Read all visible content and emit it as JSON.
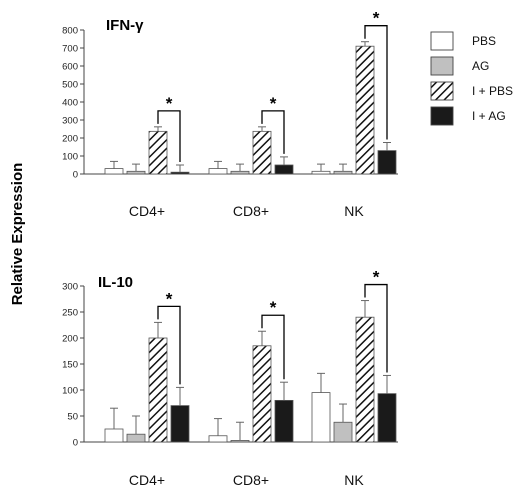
{
  "y_axis_label": "Relative Expression",
  "legend": [
    {
      "label": "PBS",
      "fill": "#ffffff"
    },
    {
      "label": "AG",
      "fill": "#c0c0c0"
    },
    {
      "label": "I + PBS",
      "fill": "hatch"
    },
    {
      "label": "I + AG",
      "fill": "#1a1a1a"
    }
  ],
  "significance_marker": "*",
  "chart_data": [
    {
      "type": "bar",
      "title": "IFN-γ",
      "categories": [
        "CD4+",
        "CD8+",
        "NK"
      ],
      "ylim": [
        0,
        800
      ],
      "yticks": [
        0,
        100,
        200,
        300,
        400,
        500,
        600,
        700,
        800
      ],
      "series": [
        {
          "name": "PBS",
          "values": [
            30,
            30,
            15
          ],
          "errors": [
            40,
            40,
            40
          ]
        },
        {
          "name": "AG",
          "values": [
            15,
            15,
            15
          ],
          "errors": [
            40,
            40,
            40
          ]
        },
        {
          "name": "I + PBS",
          "values": [
            237,
            237,
            710
          ],
          "errors": [
            25,
            25,
            25
          ]
        },
        {
          "name": "I + AG",
          "values": [
            10,
            50,
            130
          ],
          "errors": [
            40,
            45,
            45
          ]
        }
      ],
      "significance": [
        {
          "category": "CD4+",
          "between": [
            "I + PBS",
            "I + AG"
          ],
          "label": "*"
        },
        {
          "category": "CD8+",
          "between": [
            "I + PBS",
            "I + AG"
          ],
          "label": "*"
        },
        {
          "category": "NK",
          "between": [
            "I + PBS",
            "I + AG"
          ],
          "label": "*"
        }
      ]
    },
    {
      "type": "bar",
      "title": "IL-10",
      "categories": [
        "CD4+",
        "CD8+",
        "NK"
      ],
      "ylim": [
        0,
        300
      ],
      "yticks": [
        0,
        50,
        100,
        150,
        200,
        250,
        300
      ],
      "series": [
        {
          "name": "PBS",
          "values": [
            25,
            12,
            95
          ],
          "errors": [
            40,
            33,
            37
          ]
        },
        {
          "name": "AG",
          "values": [
            15,
            3,
            38
          ],
          "errors": [
            35,
            35,
            35
          ]
        },
        {
          "name": "I + PBS",
          "values": [
            200,
            185,
            240
          ],
          "errors": [
            30,
            28,
            32
          ]
        },
        {
          "name": "I + AG",
          "values": [
            70,
            80,
            93
          ],
          "errors": [
            35,
            35,
            35
          ]
        }
      ],
      "significance": [
        {
          "category": "CD4+",
          "between": [
            "I + PBS",
            "I + AG"
          ],
          "label": "*"
        },
        {
          "category": "CD8+",
          "between": [
            "I + PBS",
            "I + AG"
          ],
          "label": "*"
        },
        {
          "category": "NK",
          "between": [
            "I + PBS",
            "I + AG"
          ],
          "label": "*"
        }
      ]
    }
  ]
}
